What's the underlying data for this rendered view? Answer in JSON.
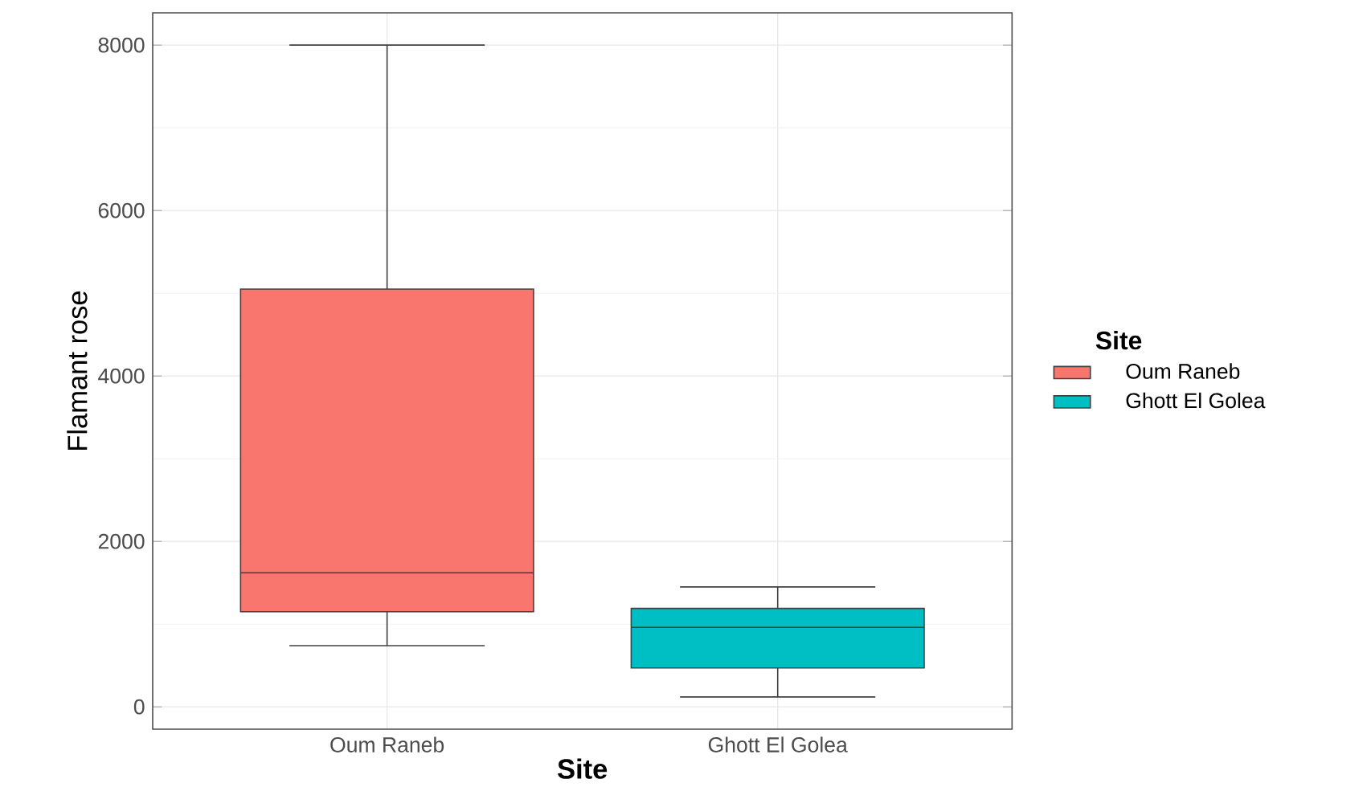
{
  "chart_data": {
    "type": "box",
    "xlabel": "Site",
    "ylabel": "Flamant rose",
    "legend_title": "Site",
    "categories": [
      "Oum Raneb",
      "Ghott El Golea"
    ],
    "series": [
      {
        "name": "Oum Raneb",
        "color": "#f8766d",
        "boxes": [
          {
            "low": 740,
            "q1": 1150,
            "median": 1620,
            "q3": 5050,
            "high": 8000
          },
          null
        ]
      },
      {
        "name": "Ghott El Golea",
        "color": "#00bfc4",
        "boxes": [
          null,
          {
            "low": 120,
            "q1": 470,
            "median": 960,
            "q3": 1190,
            "high": 1450
          }
        ]
      }
    ],
    "ylim": [
      -270,
      8390
    ],
    "yticks": [
      0,
      2000,
      4000,
      6000,
      8000
    ],
    "grid": true,
    "legend": "right"
  }
}
